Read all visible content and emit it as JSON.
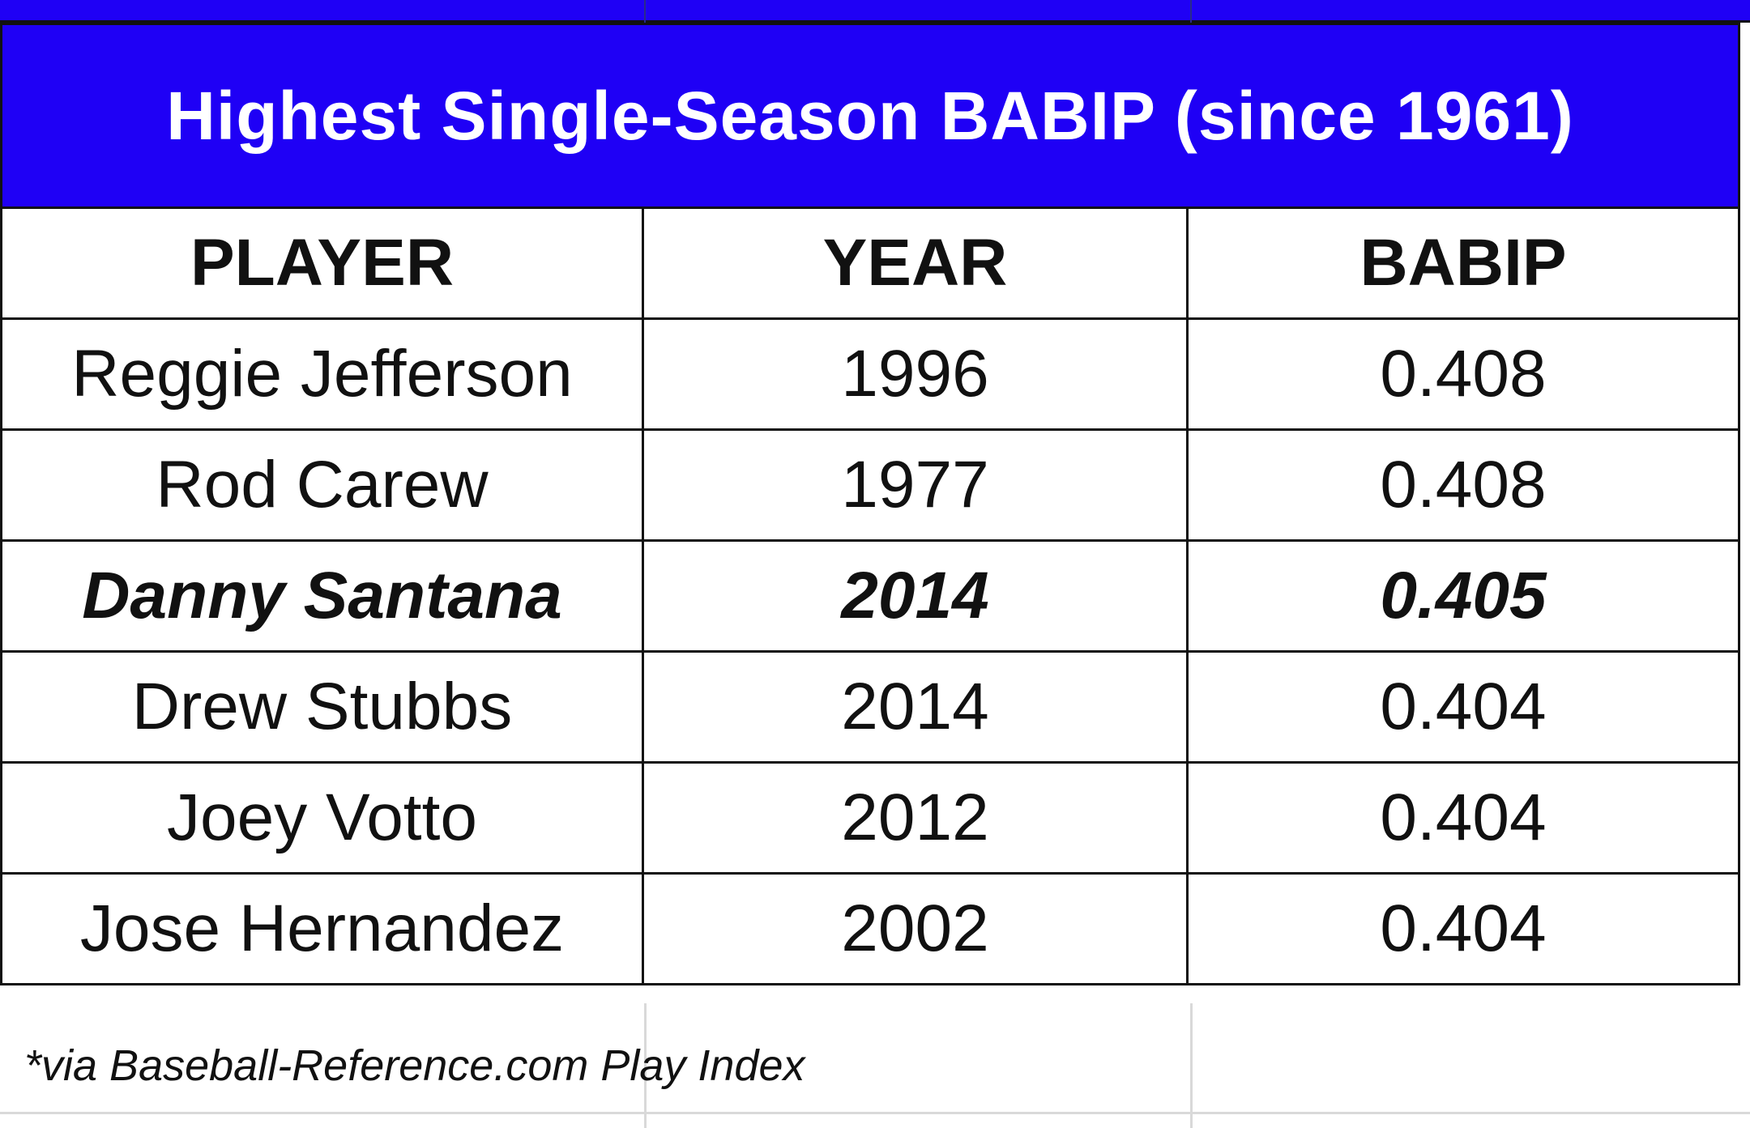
{
  "table": {
    "title": "Highest Single-Season BABIP (since 1961)",
    "headers": {
      "player": "PLAYER",
      "year": "YEAR",
      "babip": "BABIP"
    },
    "rows": [
      {
        "player": "Reggie Jefferson",
        "year": "1996",
        "babip": "0.408",
        "highlighted": false
      },
      {
        "player": "Rod Carew",
        "year": "1977",
        "babip": "0.408",
        "highlighted": false
      },
      {
        "player": "Danny Santana",
        "year": "2014",
        "babip": "0.405",
        "highlighted": true
      },
      {
        "player": "Drew Stubbs",
        "year": "2014",
        "babip": "0.404",
        "highlighted": false
      },
      {
        "player": "Joey Votto",
        "year": "2012",
        "babip": "0.404",
        "highlighted": false
      },
      {
        "player": "Jose Hernandez",
        "year": "2002",
        "babip": "0.404",
        "highlighted": false
      }
    ]
  },
  "footnote": "*via Baseball-Reference.com Play Index",
  "colors": {
    "title_background": "#1f00f5",
    "title_text": "#ffffff",
    "border": "#111111",
    "gridline": "#d9d9d9"
  }
}
